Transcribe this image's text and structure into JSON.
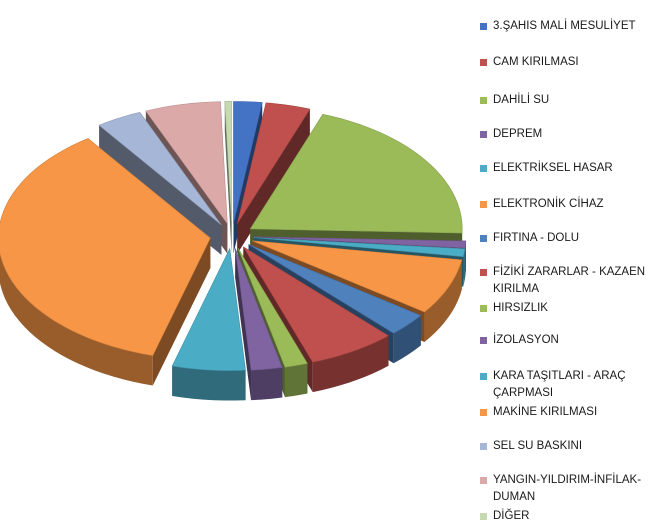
{
  "chart_data": {
    "type": "pie",
    "style": "3d-exploded",
    "title": "",
    "legend_position": "right",
    "categories": [
      "3.ŞAHIS MALİ MESULİYET",
      "CAM KIRILMASI",
      "DAHİLİ SU",
      "DEPREM",
      "ELEKTRİKSEL HASAR",
      "ELEKTRONİK CİHAZ",
      "FIRTINA - DOLU",
      "FİZİKİ ZARARLAR - KAZAEN KIRILMA",
      "HIRSIZLIK",
      "İZOLASYON",
      "KARA TAŞITLARI - ARAÇ ÇARPMASI",
      "MAKİNE KIRILMASI",
      "SEL SU BASKINI",
      "YANGIN-YILDIRIM-İNFİLAK-DUMAN",
      "DİĞER"
    ],
    "values": [
      2.1,
      3.3,
      19.4,
      0.9,
      1.0,
      7.2,
      3.0,
      6.5,
      1.7,
      2.3,
      5.4,
      34.8,
      3.4,
      5.6,
      0.5
    ],
    "colors": [
      "#4472c4",
      "#c0504d",
      "#9bbb59",
      "#8064a2",
      "#4bacc6",
      "#f79646",
      "#4f81bd",
      "#c0504d",
      "#9bbb59",
      "#8064a2",
      "#4bacc6",
      "#f79646",
      "#a5b6d6",
      "#dca9a9",
      "#c6d9b1"
    ]
  }
}
